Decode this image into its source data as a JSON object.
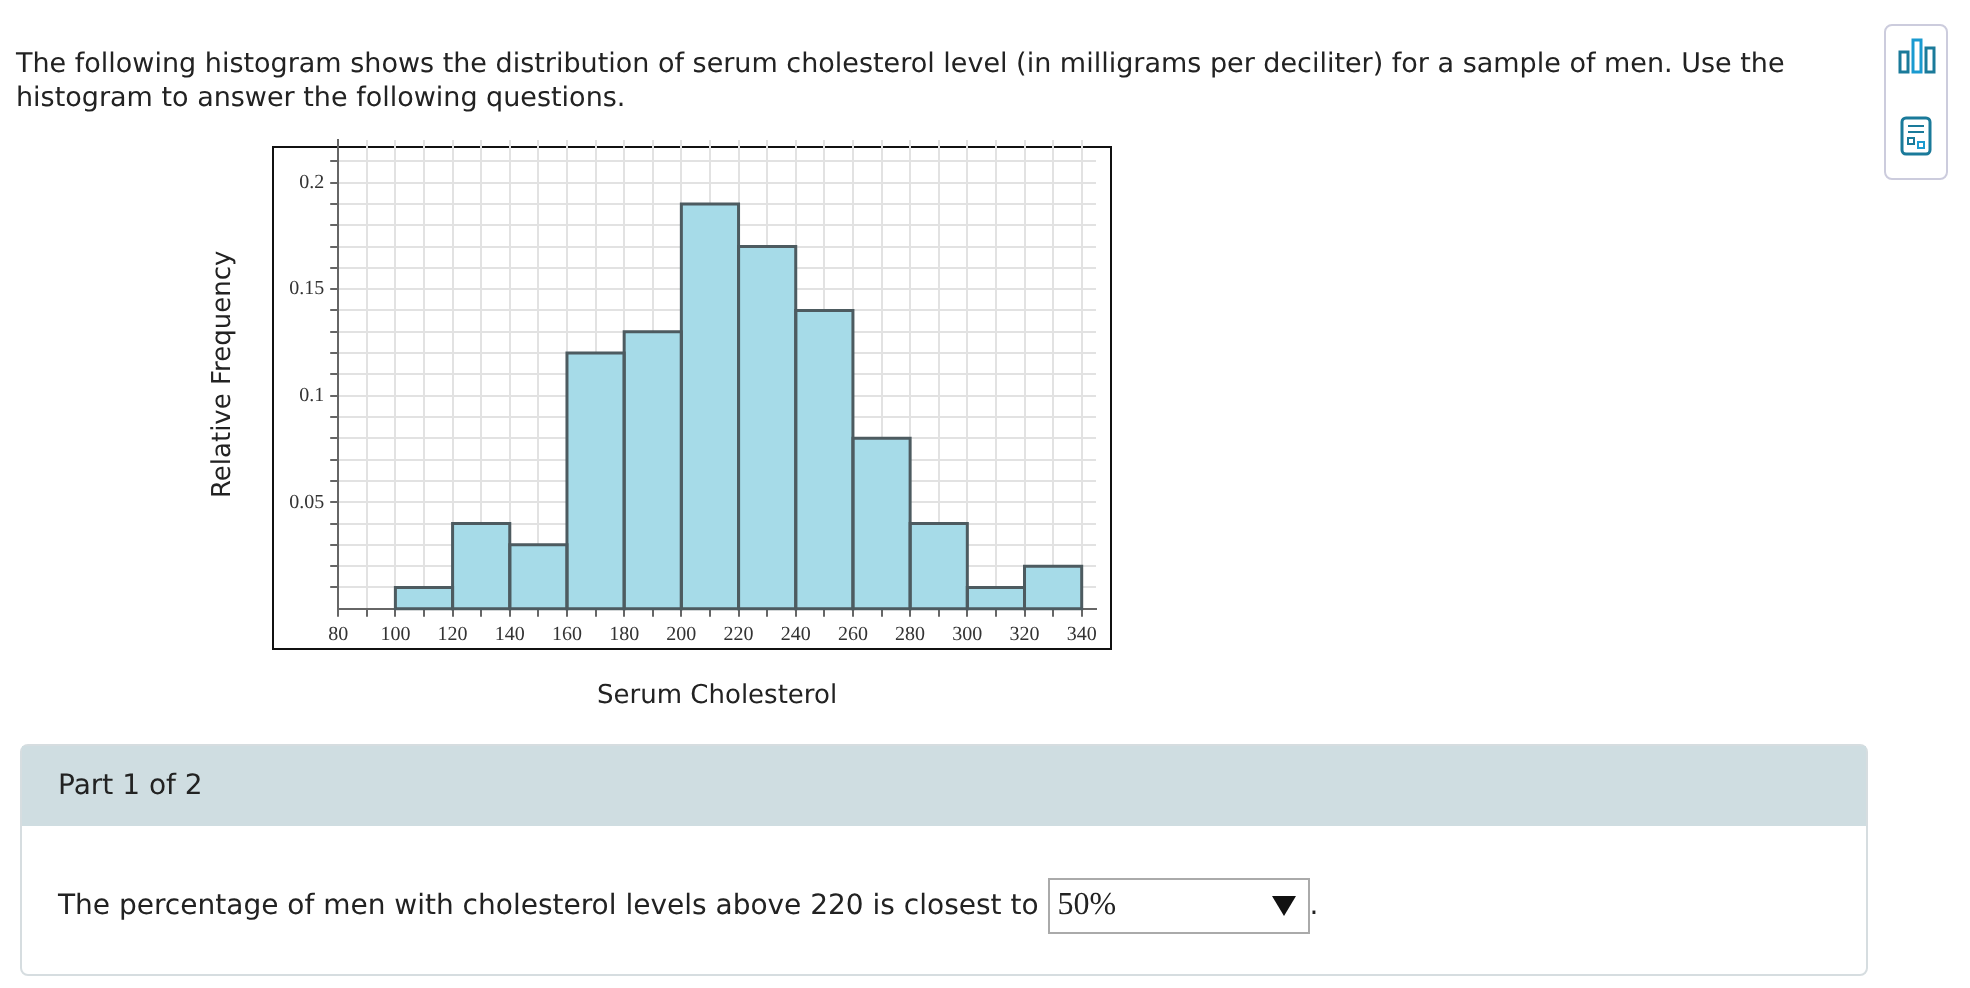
{
  "chart_data": {
    "type": "histogram",
    "title": "The following histogram shows the distribution of serum cholesterol level (in milligrams per deciliter) for a sample of men. Use the histogram to answer the following questions.",
    "xlabel": "Serum Cholesterol",
    "ylabel": "Relative Frequency",
    "bins": [
      100,
      120,
      140,
      160,
      180,
      200,
      220,
      240,
      260,
      280,
      300,
      320,
      340
    ],
    "values": [
      0.01,
      0.04,
      0.03,
      0.12,
      0.13,
      0.19,
      0.17,
      0.14,
      0.08,
      0.04,
      0.01,
      0.02
    ],
    "color": "#a6dbe8",
    "xlim": [
      80,
      345
    ],
    "xticks": [
      80,
      {
        "value": 90,
        "label": null
      },
      100,
      {
        "value": 110,
        "label": null
      },
      120,
      {
        "value": 130,
        "label": null
      },
      140,
      {
        "value": 150,
        "label": null
      },
      160,
      {
        "value": 170,
        "label": null
      },
      180,
      {
        "value": 190,
        "label": null
      },
      200,
      {
        "value": 210,
        "label": null
      },
      220,
      {
        "value": 230,
        "label": null
      },
      240,
      {
        "value": 250,
        "label": null
      },
      260,
      {
        "value": 270,
        "label": null
      },
      280,
      {
        "value": 290,
        "label": null
      },
      300,
      {
        "value": 310,
        "label": null
      },
      320,
      {
        "value": 330,
        "label": null
      },
      340
    ],
    "ylim": [
      0,
      0.22
    ],
    "yticks": [
      {
        "value": 0.01,
        "label": null
      },
      {
        "value": 0.02,
        "label": null
      },
      {
        "value": 0.03,
        "label": null
      },
      {
        "value": 0.04,
        "label": null
      },
      0.05,
      {
        "value": 0.06,
        "label": null
      },
      {
        "value": 0.07,
        "label": null
      },
      {
        "value": 0.08,
        "label": null
      },
      {
        "value": 0.09,
        "label": null
      },
      0.1,
      {
        "value": 0.11,
        "label": null
      },
      {
        "value": 0.12,
        "label": null
      },
      {
        "value": 0.13,
        "label": null
      },
      {
        "value": 0.14,
        "label": null
      },
      0.15,
      {
        "value": 0.16,
        "label": null
      },
      {
        "value": 0.17,
        "label": null
      },
      {
        "value": 0.18,
        "label": null
      },
      {
        "value": 0.19,
        "label": null
      },
      0.2,
      {
        "value": 0.21,
        "label": null
      }
    ],
    "grid": true,
    "annotations": [
      "Part 1 of 2",
      "The percentage of men with cholesterol levels above 220 is closest to",
      "50%",
      "."
    ]
  }
}
